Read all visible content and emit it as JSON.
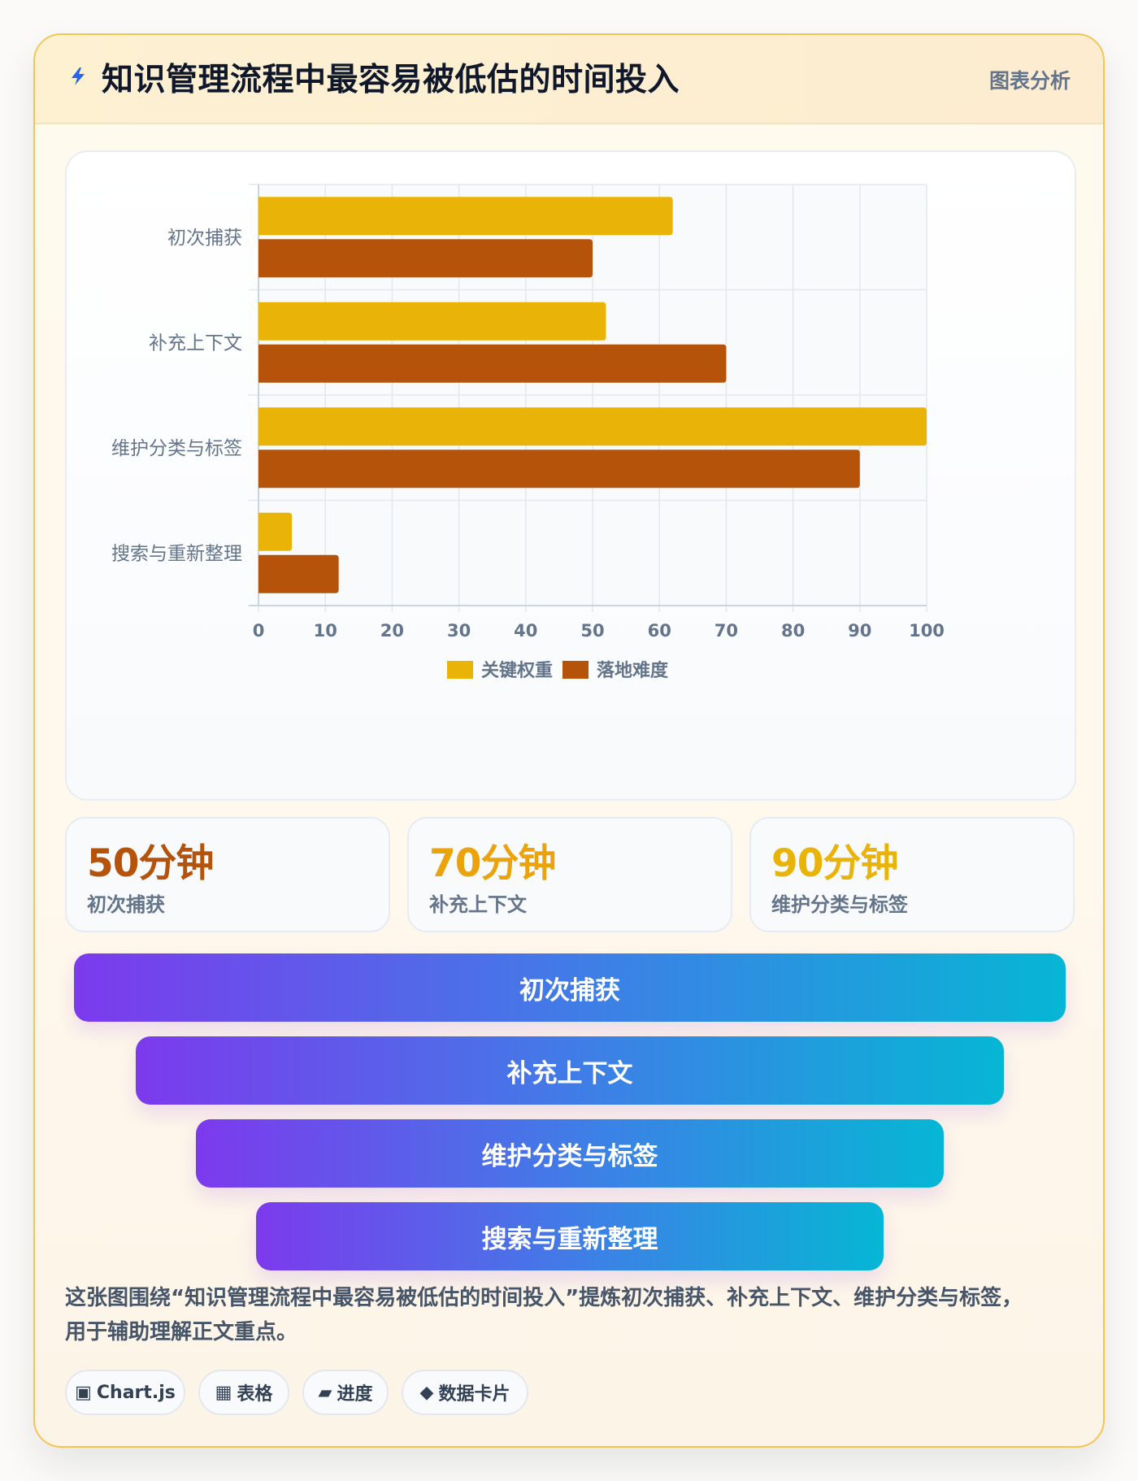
{
  "header": {
    "icon": "lightning-icon",
    "title": "知识管理流程中最容易被低估的时间投入",
    "tag": "图表分析"
  },
  "chart_data": {
    "type": "bar",
    "orientation": "horizontal",
    "categories": [
      "初次捕获",
      "补充上下文",
      "维护分类与标签",
      "搜索与重新整理"
    ],
    "series": [
      {
        "name": "关键权重",
        "color": "#e9b308",
        "values": [
          62,
          52,
          100,
          5
        ]
      },
      {
        "name": "落地难度",
        "color": "#b45309",
        "values": [
          50,
          70,
          90,
          12
        ]
      }
    ],
    "xlim": [
      0,
      100
    ],
    "xticks": [
      "0",
      "10",
      "20",
      "30",
      "40",
      "50",
      "60",
      "70",
      "80",
      "90",
      "100"
    ],
    "grid": true,
    "legend_position": "bottom"
  },
  "stats": [
    {
      "value": "50分钟",
      "label": "初次捕获",
      "color": "#b45309"
    },
    {
      "value": "70分钟",
      "label": "补充上下文",
      "color": "#eaa30a"
    },
    {
      "value": "90分钟",
      "label": "维护分类与标签",
      "color": "#eab308"
    }
  ],
  "funnel": [
    "初次捕获",
    "补充上下文",
    "维护分类与标签",
    "搜索与重新整理"
  ],
  "description": "这张图围绕“知识管理流程中最容易被低估的时间投入”提炼初次捕获、补充上下文、维护分类与标签，用于辅助理解正文重点。",
  "tags": [
    {
      "icon": "chart-square-icon",
      "glyph": "▣",
      "label": "Chart.js"
    },
    {
      "icon": "table-icon",
      "glyph": "▦",
      "label": "表格"
    },
    {
      "icon": "progress-icon",
      "glyph": "▰",
      "label": "进度"
    },
    {
      "icon": "diamond-icon",
      "glyph": "◆",
      "label": "数据卡片"
    }
  ]
}
